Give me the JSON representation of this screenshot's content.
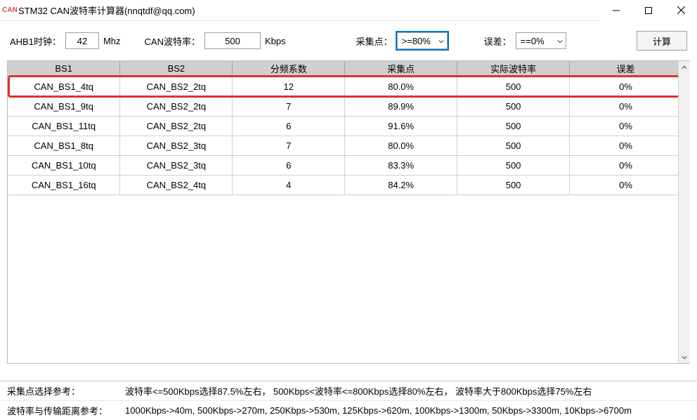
{
  "window": {
    "title": "STM32 CAN波特率计算器(nnqtdf@qq.com)",
    "icon_label": "CAN"
  },
  "toolbar": {
    "ahb_label": "AHB1时钟：",
    "ahb_value": "42",
    "ahb_unit": "Mhz",
    "baud_label": "CAN波特率：",
    "baud_value": "500",
    "baud_unit": "Kbps",
    "sample_label": "采集点：",
    "sample_value": ">=80%",
    "error_label": "误差：",
    "error_value": "==0%",
    "calc_label": "计算"
  },
  "grid": {
    "columns": [
      "BS1",
      "BS2",
      "分频系数",
      "采集点",
      "实际波特率",
      "误差"
    ],
    "rows": [
      [
        "CAN_BS1_4tq",
        "CAN_BS2_2tq",
        "12",
        "80.0%",
        "500",
        "0%"
      ],
      [
        "CAN_BS1_9tq",
        "CAN_BS2_2tq",
        "7",
        "89.9%",
        "500",
        "0%"
      ],
      [
        "CAN_BS1_11tq",
        "CAN_BS2_2tq",
        "6",
        "91.6%",
        "500",
        "0%"
      ],
      [
        "CAN_BS1_8tq",
        "CAN_BS2_3tq",
        "7",
        "80.0%",
        "500",
        "0%"
      ],
      [
        "CAN_BS1_10tq",
        "CAN_BS2_3tq",
        "6",
        "83.3%",
        "500",
        "0%"
      ],
      [
        "CAN_BS1_16tq",
        "CAN_BS2_4tq",
        "4",
        "84.2%",
        "500",
        "0%"
      ]
    ],
    "highlight_row_index": 0,
    "highlight_color": "#e03030",
    "header_bg": "#cfcfcf"
  },
  "footer": {
    "line1_label": "采集点选择参考：",
    "line1_text": "波特率<=500Kbps选择87.5%左右，  500Kbps<波特率<=800Kbps选择80%左右，  波特率大于800Kbps选择75%左右",
    "line2_label": "波特率与传输距离参考：",
    "line2_text": "1000Kbps->40m, 500Kbps->270m, 250Kbps->530m, 125Kbps->620m, 100Kbps->1300m, 50Kbps->3300m, 10Kbps->6700m"
  }
}
